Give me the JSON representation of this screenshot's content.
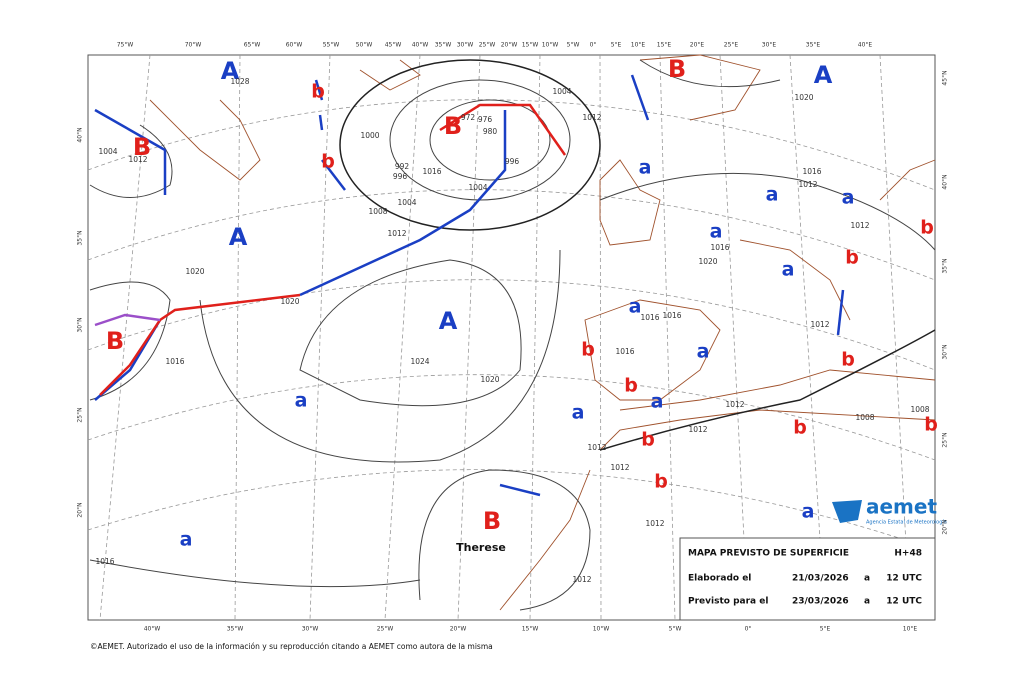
{
  "top_lon_labels": [
    "75°W",
    "70°W",
    "65°W",
    "60°W",
    "55°W",
    "50°W",
    "45°W",
    "40°W",
    "35°W",
    "30°W",
    "25°W",
    "20°W",
    "15°W",
    "10°W",
    "5°W",
    "0°",
    "5°E",
    "10°E",
    "15°E",
    "20°E",
    "25°E",
    "30°E",
    "35°E",
    "40°E"
  ],
  "bottom_lon_labels": [
    "40°W",
    "35°W",
    "30°W",
    "25°W",
    "20°W",
    "15°W",
    "10°W",
    "5°W",
    "0°",
    "5°E",
    "10°E"
  ],
  "left_lat_labels": [
    "40°N",
    "35°N",
    "30°N",
    "25°N",
    "20°N"
  ],
  "right_lat_labels": [
    "45°N",
    "40°N",
    "35°N",
    "30°N",
    "25°N",
    "20°N"
  ],
  "pressure_centers": [
    "A",
    "b",
    "b",
    "B",
    "B",
    "A",
    "B",
    "A",
    "a",
    "a",
    "a",
    "a",
    "b",
    "b",
    "a",
    "A",
    "B",
    "a",
    "b",
    "a",
    "b",
    "b",
    "a",
    "a",
    "a",
    "b",
    "b",
    "b",
    "b",
    "B",
    "a",
    "a"
  ],
  "isobar_labels": [
    "1004",
    "1012",
    "1028",
    "1020",
    "1016",
    "1016",
    "1000",
    "1008",
    "1004",
    "996",
    "992",
    "980",
    "972",
    "976",
    "996",
    "1004",
    "1012",
    "1020",
    "1024",
    "1020",
    "1004",
    "1012",
    "1016",
    "1020",
    "1016",
    "1016",
    "1012",
    "1012",
    "1012",
    "1012",
    "1012",
    "1012",
    "1012",
    "1008",
    "1008",
    "1012",
    "1016",
    "1020",
    "1016",
    "1016",
    "1012"
  ],
  "storm_name": "Therese",
  "info_box": {
    "title": "MAPA PREVISTO DE SUPERFICIE",
    "range": "H+48",
    "rows": [
      {
        "label": "Elaborado el",
        "date": "21/03/2026",
        "a": "a",
        "time": "12 UTC"
      },
      {
        "label": "Previsto para el",
        "date": "23/03/2026",
        "a": "a",
        "time": "12 UTC"
      }
    ]
  },
  "logo": {
    "name": "aemet",
    "subtitle": "Agencia Estatal de Meteorología"
  },
  "copyright": "©AEMET. Autorizado el uso de la información y su reproducción citando a AEMET como autora de la misma"
}
